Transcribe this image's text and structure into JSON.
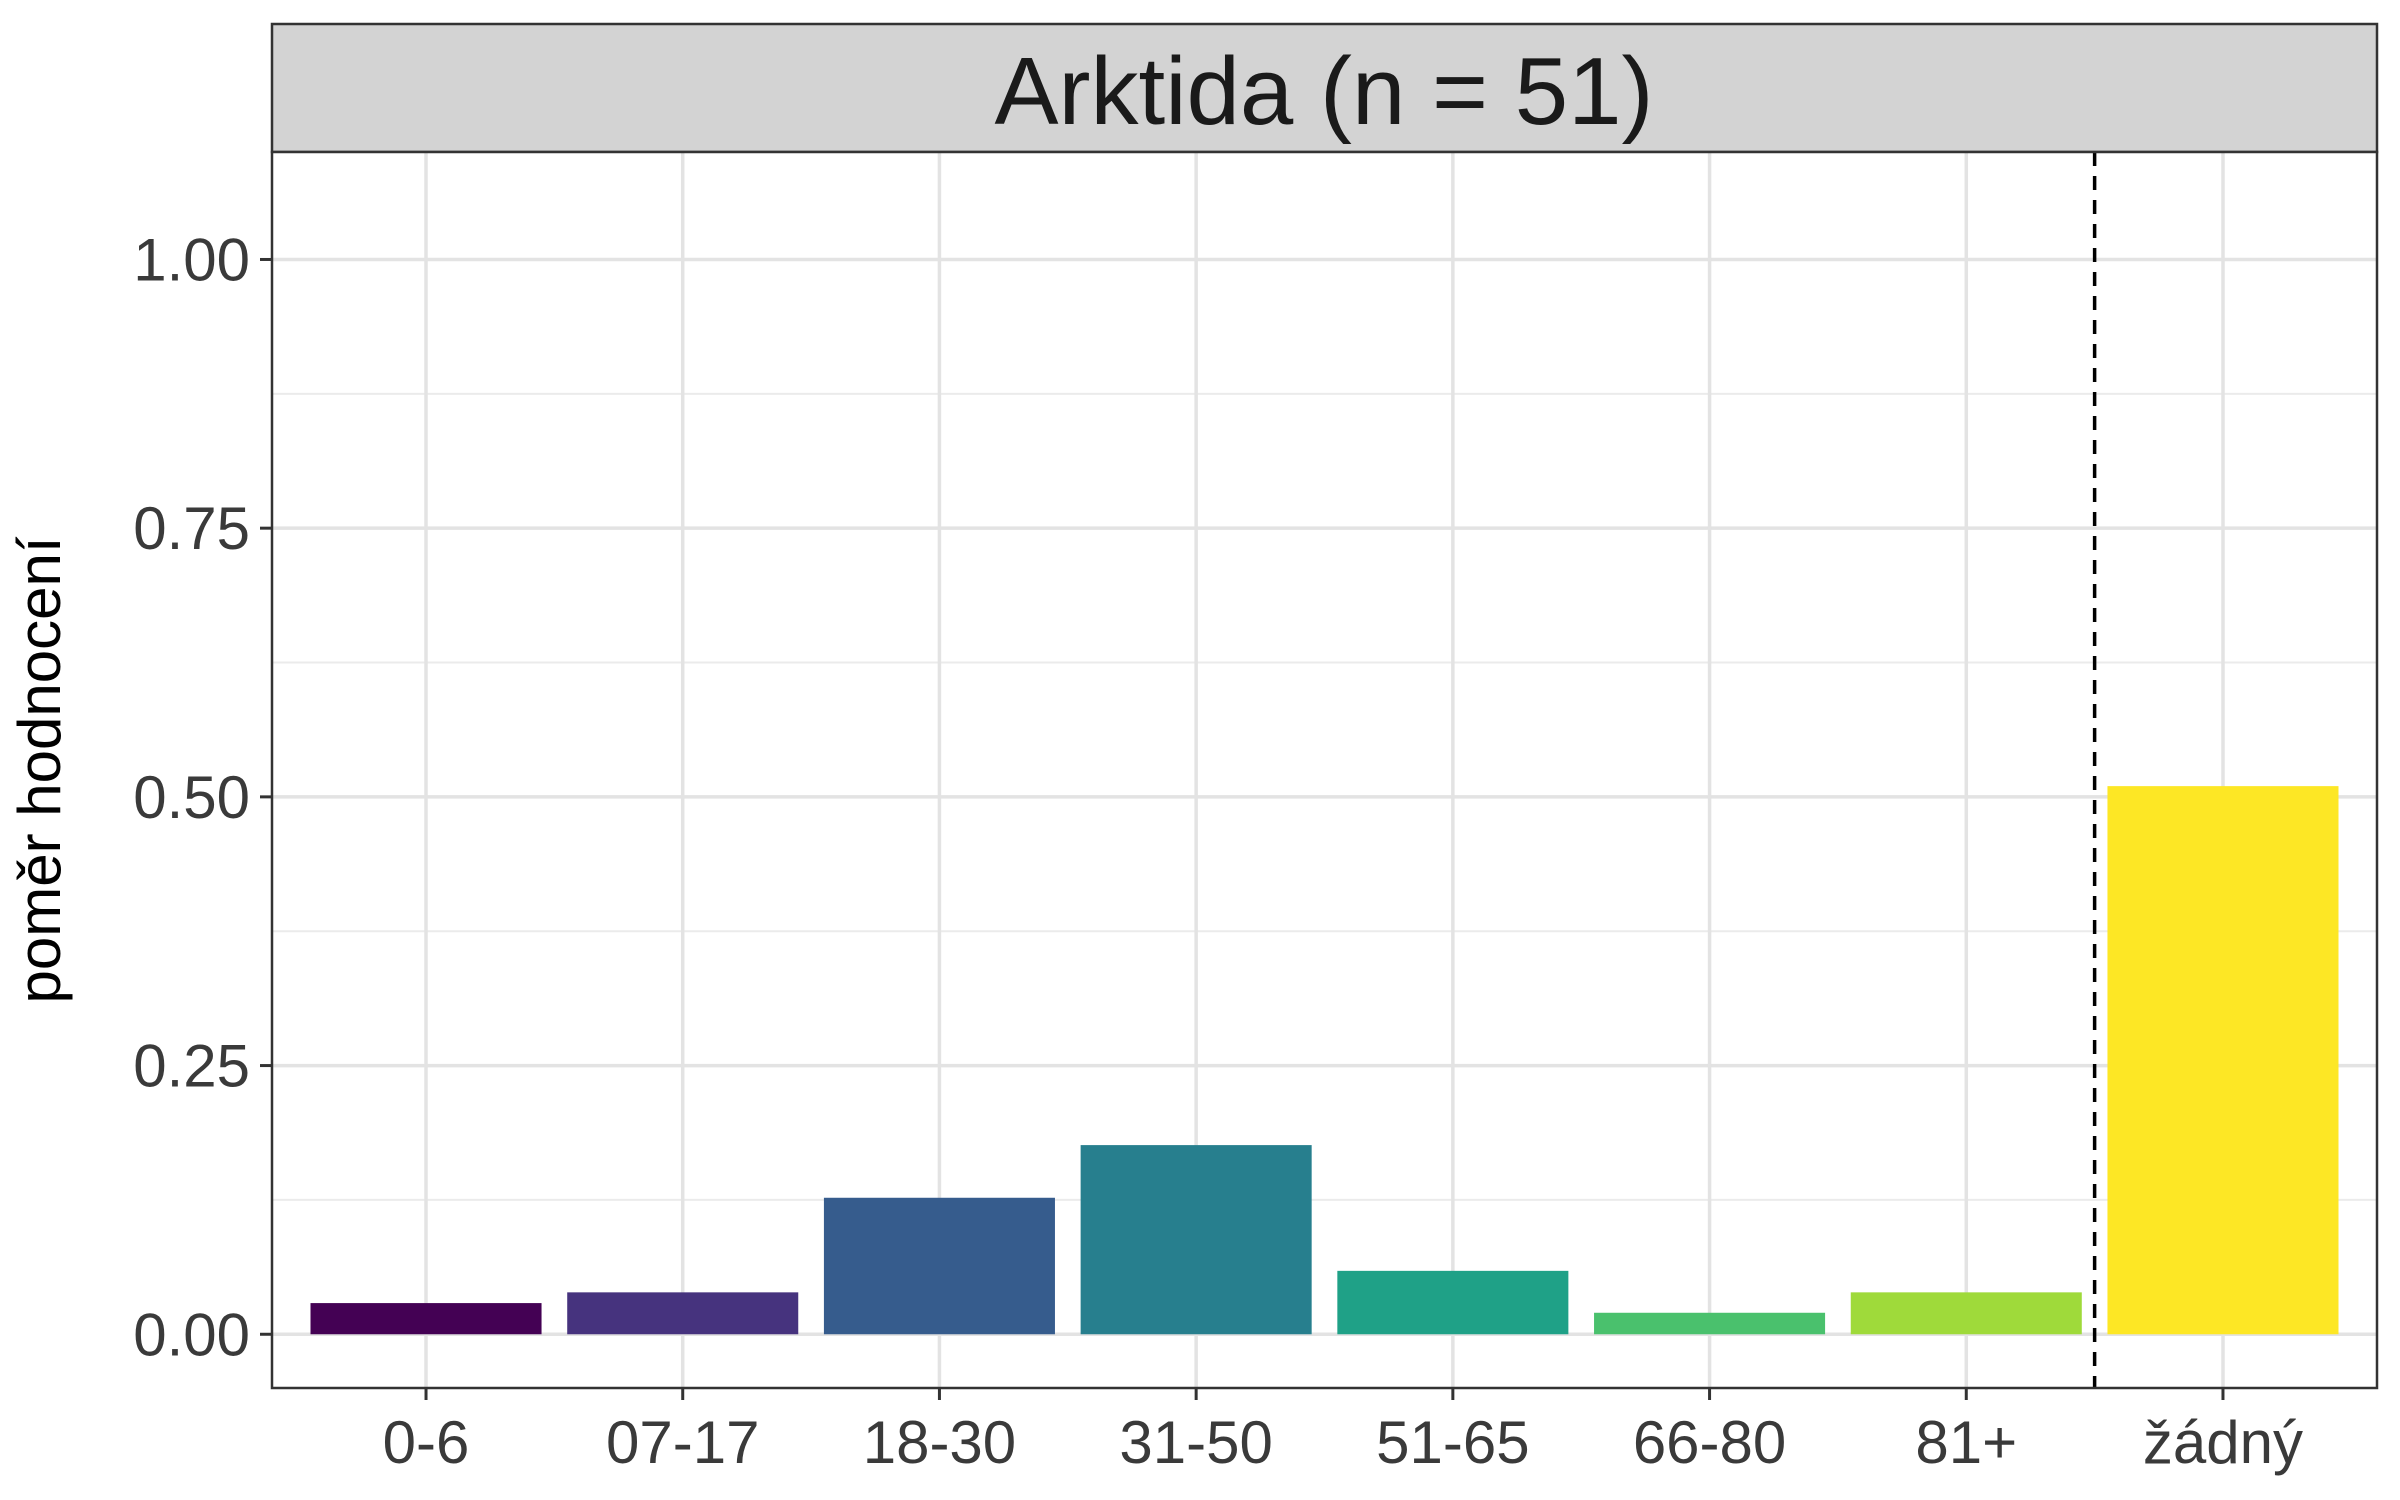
{
  "chart_data": {
    "type": "bar",
    "title": "Arktida (n = 51)",
    "xlabel": "",
    "ylabel": "poměr hodnocení",
    "categories": [
      "0-6",
      "07-17",
      "18-30",
      "31-50",
      "51-65",
      "66-80",
      "81+",
      "žádný"
    ],
    "values": [
      0.029,
      0.039,
      0.127,
      0.176,
      0.059,
      0.02,
      0.039,
      0.51
    ],
    "colors": [
      "#440154",
      "#46337E",
      "#365C8D",
      "#277F8E",
      "#1FA187",
      "#4AC16D",
      "#9FDA3A",
      "#FDE725"
    ],
    "ylim": [
      -0.05,
      1.1
    ],
    "yticks": [
      0.0,
      0.25,
      0.5,
      0.75,
      1.0
    ],
    "ytick_labels": [
      "0.00",
      "0.25",
      "0.50",
      "0.75",
      "1.00"
    ],
    "separator_after_category": "81+",
    "separator_style": "dashed",
    "grid": true,
    "legend": "none"
  }
}
